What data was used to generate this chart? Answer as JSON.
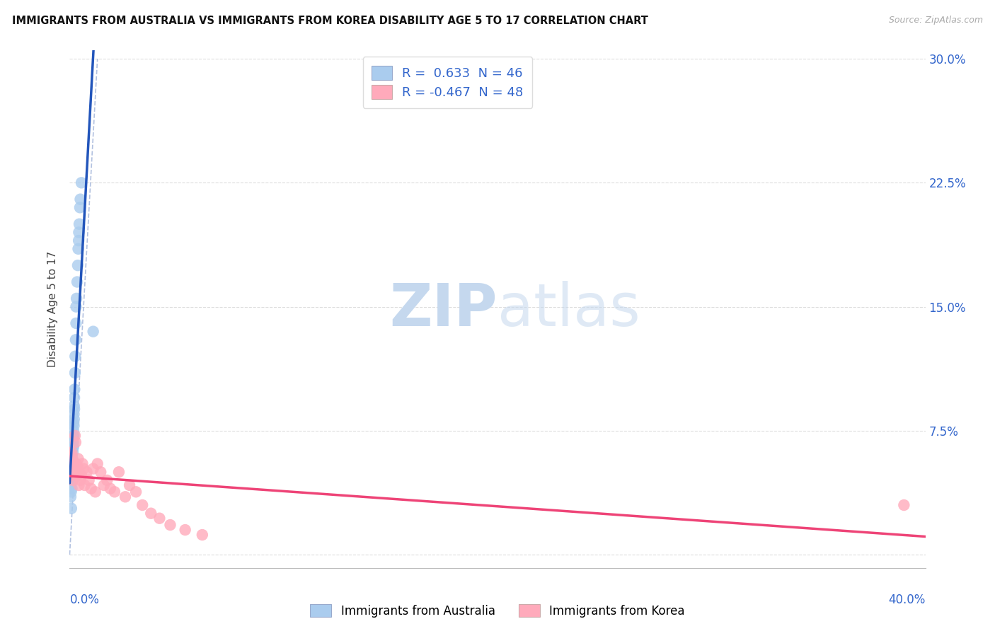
{
  "title": "IMMIGRANTS FROM AUSTRALIA VS IMMIGRANTS FROM KOREA DISABILITY AGE 5 TO 17 CORRELATION CHART",
  "source": "Source: ZipAtlas.com",
  "ylabel": "Disability Age 5 to 17",
  "ytick_values": [
    0.0,
    0.075,
    0.15,
    0.225,
    0.3
  ],
  "ytick_labels": [
    "",
    "7.5%",
    "15.0%",
    "22.5%",
    "30.0%"
  ],
  "xlim": [
    0.0,
    0.4
  ],
  "ylim": [
    -0.008,
    0.305
  ],
  "legend1_R": " 0.633",
  "legend1_N": "46",
  "legend2_R": "-0.467",
  "legend2_N": "48",
  "legend_label1": "Immigrants from Australia",
  "legend_label2": "Immigrants from Korea",
  "blue_dot_color": "#AACCEE",
  "pink_dot_color": "#FFAABB",
  "blue_line_color": "#2255BB",
  "pink_line_color": "#EE4477",
  "dash_line_color": "#AABBDD",
  "title_fontsize": 10.5,
  "background_color": "#FFFFFF",
  "grid_color": "#DDDDDD",
  "australia_x": [
    0.0003,
    0.0005,
    0.0005,
    0.0007,
    0.0008,
    0.0008,
    0.001,
    0.001,
    0.001,
    0.0012,
    0.0012,
    0.0013,
    0.0013,
    0.0015,
    0.0015,
    0.0015,
    0.0015,
    0.0016,
    0.0017,
    0.0018,
    0.0018,
    0.0019,
    0.0019,
    0.002,
    0.002,
    0.0021,
    0.0021,
    0.0022,
    0.0022,
    0.0023,
    0.0025,
    0.0026,
    0.0028,
    0.003,
    0.003,
    0.0032,
    0.0035,
    0.0038,
    0.004,
    0.0042,
    0.0043,
    0.0045,
    0.0048,
    0.005,
    0.0055,
    0.011
  ],
  "australia_y": [
    0.05,
    0.035,
    0.042,
    0.038,
    0.048,
    0.028,
    0.06,
    0.05,
    0.04,
    0.065,
    0.058,
    0.055,
    0.045,
    0.07,
    0.062,
    0.055,
    0.048,
    0.072,
    0.068,
    0.075,
    0.065,
    0.08,
    0.072,
    0.085,
    0.078,
    0.09,
    0.082,
    0.095,
    0.088,
    0.1,
    0.11,
    0.12,
    0.13,
    0.14,
    0.15,
    0.155,
    0.165,
    0.175,
    0.185,
    0.19,
    0.195,
    0.2,
    0.21,
    0.215,
    0.225,
    0.135
  ],
  "korea_x": [
    0.0003,
    0.0005,
    0.0007,
    0.0008,
    0.0009,
    0.001,
    0.0012,
    0.0013,
    0.0015,
    0.0018,
    0.002,
    0.0022,
    0.0025,
    0.0028,
    0.003,
    0.0033,
    0.0035,
    0.0038,
    0.004,
    0.0043,
    0.0045,
    0.005,
    0.0055,
    0.006,
    0.0065,
    0.007,
    0.008,
    0.009,
    0.01,
    0.011,
    0.012,
    0.013,
    0.0145,
    0.016,
    0.0175,
    0.019,
    0.021,
    0.023,
    0.026,
    0.028,
    0.031,
    0.034,
    0.038,
    0.042,
    0.047,
    0.054,
    0.062,
    0.39
  ],
  "korea_y": [
    0.055,
    0.058,
    0.052,
    0.06,
    0.048,
    0.062,
    0.05,
    0.058,
    0.045,
    0.055,
    0.05,
    0.048,
    0.072,
    0.068,
    0.055,
    0.05,
    0.048,
    0.053,
    0.058,
    0.042,
    0.05,
    0.045,
    0.048,
    0.055,
    0.052,
    0.042,
    0.05,
    0.045,
    0.04,
    0.052,
    0.038,
    0.055,
    0.05,
    0.042,
    0.045,
    0.04,
    0.038,
    0.05,
    0.035,
    0.042,
    0.038,
    0.03,
    0.025,
    0.022,
    0.018,
    0.015,
    0.012,
    0.03
  ]
}
